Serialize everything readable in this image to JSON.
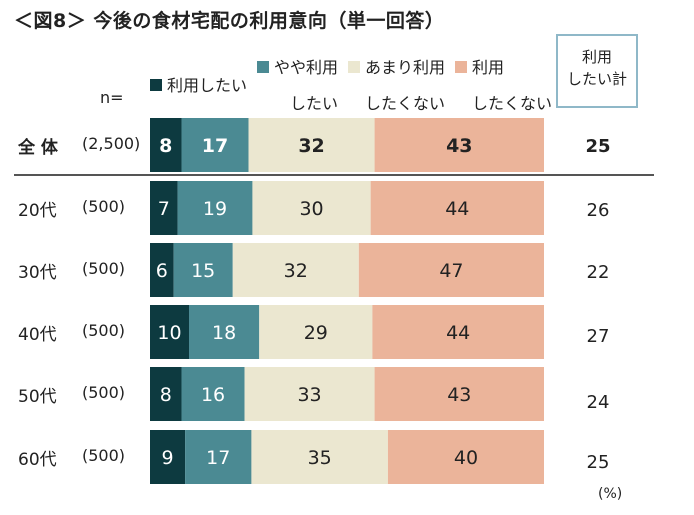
{
  "title": "＜図8＞ 今後の食材宅配の利用意向（単一回答）",
  "n_label": "n=",
  "total_box_label": [
    "利用",
    "したい計"
  ],
  "percent_unit": "(%)",
  "legend": [
    {
      "name": "利用したい",
      "line2": "",
      "color": "#0d3a40"
    },
    {
      "name": "やや利用",
      "line2": "したい",
      "color": "#4b8a93"
    },
    {
      "name": "あまり利用",
      "line2": "したくない",
      "color": "#ebe7d0"
    },
    {
      "name": "利用",
      "line2": "したくない",
      "color": "#ebb49a"
    }
  ],
  "chart_data": {
    "type": "bar",
    "orientation": "horizontal-stacked-100",
    "title": "＜図8＞ 今後の食材宅配の利用意向（単一回答）",
    "series_names": [
      "利用したい",
      "やや利用したい",
      "あまり利用したくない",
      "利用したくない"
    ],
    "colors": [
      "#0d3a40",
      "#4b8a93",
      "#ebe7d0",
      "#ebb49a"
    ],
    "label_colors": [
      "#ffffff",
      "#ffffff",
      "#222222",
      "#222222"
    ],
    "unit": "%",
    "rows": [
      {
        "label": "全 体",
        "n": "(2,500)",
        "values": [
          8,
          17,
          32,
          43
        ],
        "total": 25,
        "bold": true
      },
      {
        "label": "20代",
        "n": "(500)",
        "values": [
          7,
          19,
          30,
          44
        ],
        "total": 26,
        "bold": false
      },
      {
        "label": "30代",
        "n": "(500)",
        "values": [
          6,
          15,
          32,
          47
        ],
        "total": 22,
        "bold": false
      },
      {
        "label": "40代",
        "n": "(500)",
        "values": [
          10,
          18,
          29,
          44
        ],
        "total": 27,
        "bold": false
      },
      {
        "label": "50代",
        "n": "(500)",
        "values": [
          8,
          16,
          33,
          43
        ],
        "total": 24,
        "bold": false
      },
      {
        "label": "60代",
        "n": "(500)",
        "values": [
          9,
          17,
          35,
          40
        ],
        "total": 25,
        "bold": false
      }
    ]
  }
}
